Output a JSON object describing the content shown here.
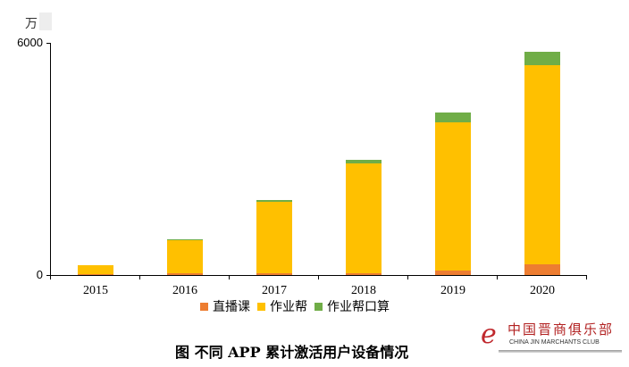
{
  "chart_data": {
    "type": "bar",
    "stacked": true,
    "title": "图 不同 APP 累计激活用户设备情况",
    "xlabel": "",
    "ylabel": "万",
    "ylim": [
      0,
      6000
    ],
    "yticks": [
      0,
      6000
    ],
    "grid": false,
    "legend_position": "bottom",
    "categories": [
      "2015",
      "2016",
      "2017",
      "2018",
      "2019",
      "2020"
    ],
    "series": [
      {
        "name": "直播课",
        "color": "#ED7D31",
        "values": [
          20,
          40,
          45,
          50,
          115,
          277
        ]
      },
      {
        "name": "作业帮",
        "color": "#FFC000",
        "values": [
          234,
          880,
          1850,
          2835,
          3830,
          5150
        ]
      },
      {
        "name": "作业帮口算",
        "color": "#70AD47",
        "values": [
          0,
          5,
          45,
          92,
          254,
          346
        ]
      }
    ]
  },
  "axis": {
    "unit_label": "万",
    "y_labels": [
      "6000",
      "0"
    ]
  },
  "legend": {
    "items": [
      {
        "label": "直播课",
        "color": "#ED7D31"
      },
      {
        "label": "作业帮",
        "color": "#FFC000"
      },
      {
        "label": "作业帮口算",
        "color": "#70AD47"
      }
    ]
  },
  "caption": "图 不同 APP 累计激活用户设备情况",
  "watermark": {
    "logo_glyph": "e",
    "cn_text": "中国晋商俱乐部",
    "en_text": "CHINA JIN MARCHANTS CLUB"
  }
}
